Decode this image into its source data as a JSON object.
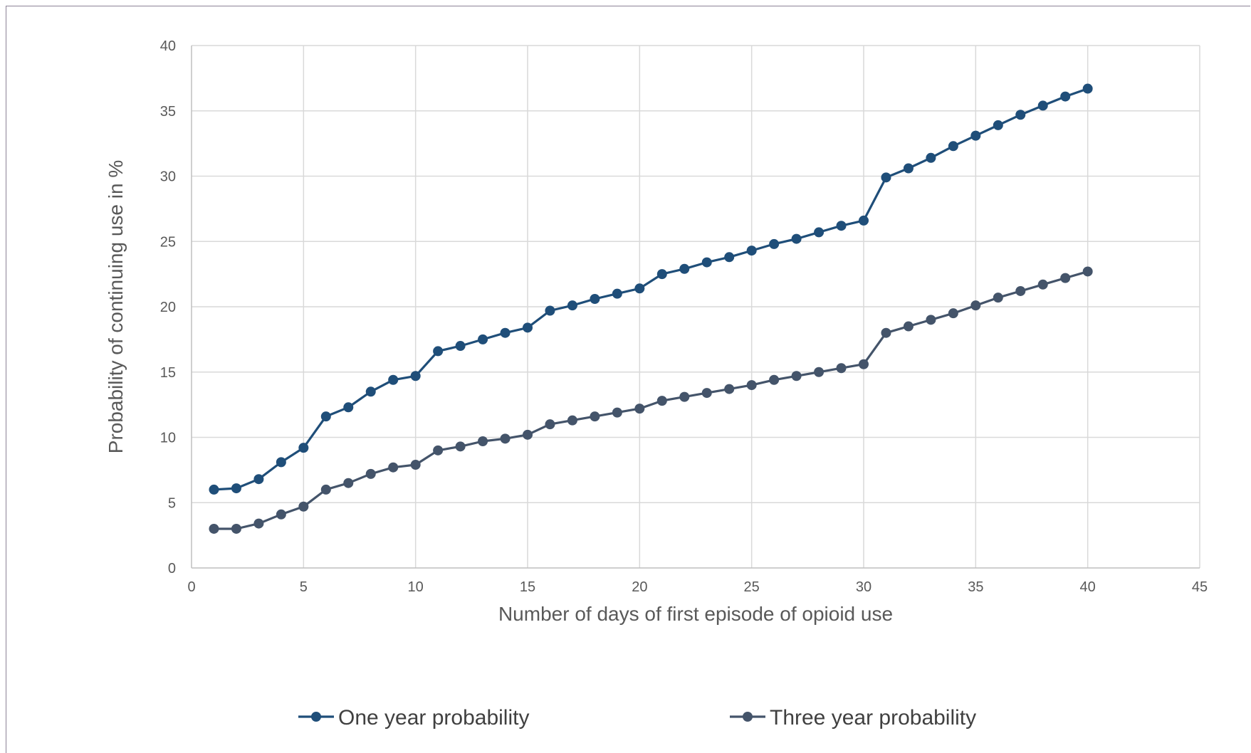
{
  "chart_data": {
    "type": "line",
    "title": "",
    "xlabel": "Number of days of first episode of opioid use",
    "ylabel": "Probability of continuing use in %",
    "xlim": [
      0,
      45
    ],
    "ylim": [
      0,
      40
    ],
    "xticks": [
      0,
      5,
      10,
      15,
      20,
      25,
      30,
      35,
      40,
      45
    ],
    "yticks": [
      0,
      5,
      10,
      15,
      20,
      25,
      30,
      35,
      40
    ],
    "grid": true,
    "legend_position": "bottom",
    "x": [
      1,
      2,
      3,
      4,
      5,
      6,
      7,
      8,
      9,
      10,
      11,
      12,
      13,
      14,
      15,
      16,
      17,
      18,
      19,
      20,
      21,
      22,
      23,
      24,
      25,
      26,
      27,
      28,
      29,
      30,
      31,
      32,
      33,
      34,
      35,
      36,
      37,
      38,
      39,
      40
    ],
    "series": [
      {
        "name": "One year probability",
        "color": "#1f4e79",
        "values": [
          6.0,
          6.1,
          6.8,
          8.1,
          9.2,
          11.6,
          12.3,
          13.5,
          14.4,
          14.7,
          16.6,
          17.0,
          17.5,
          18.0,
          18.4,
          19.7,
          20.1,
          20.6,
          21.0,
          21.4,
          22.5,
          22.9,
          23.4,
          23.8,
          24.3,
          24.8,
          25.2,
          25.7,
          26.2,
          26.6,
          29.9,
          30.6,
          31.4,
          32.3,
          33.1,
          33.9,
          34.7,
          35.4,
          36.1,
          36.7
        ]
      },
      {
        "name": "Three year probability",
        "color": "#44546a",
        "values": [
          3.0,
          3.0,
          3.4,
          4.1,
          4.7,
          6.0,
          6.5,
          7.2,
          7.7,
          7.9,
          9.0,
          9.3,
          9.7,
          9.9,
          10.2,
          11.0,
          11.3,
          11.6,
          11.9,
          12.2,
          12.8,
          13.1,
          13.4,
          13.7,
          14.0,
          14.4,
          14.7,
          15.0,
          15.3,
          15.6,
          18.0,
          18.5,
          19.0,
          19.5,
          20.1,
          20.7,
          21.2,
          21.7,
          22.2,
          22.7
        ]
      }
    ]
  }
}
